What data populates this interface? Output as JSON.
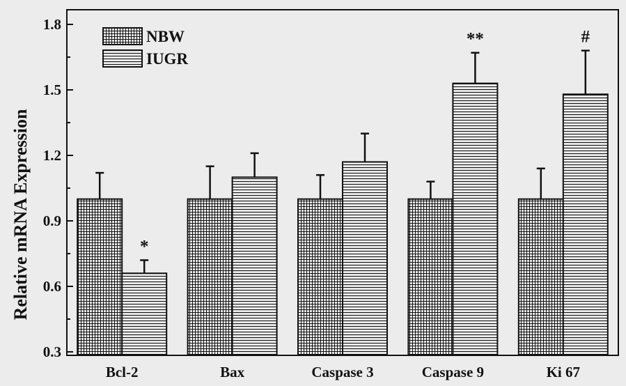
{
  "chart_data": {
    "type": "bar",
    "ylabel": "Relative mRNA Expression",
    "xlabel": "",
    "ylim": [
      0.3,
      1.8
    ],
    "yticks": [
      0.3,
      0.6,
      0.9,
      1.2,
      1.5,
      1.8
    ],
    "ytick_labels": [
      "0.3",
      "0.6",
      "0.9",
      "1.2",
      "1.5",
      "1.8"
    ],
    "categories": [
      "Bcl-2",
      "Bax",
      "Caspase 3",
      "Caspase 9",
      "Ki 67"
    ],
    "series": [
      {
        "name": "NBW",
        "pattern": "grid",
        "values": [
          1.0,
          1.0,
          1.0,
          1.0,
          1.0
        ],
        "errors": [
          0.12,
          0.15,
          0.11,
          0.08,
          0.14
        ]
      },
      {
        "name": "IUGR",
        "pattern": "horizontal-lines",
        "values": [
          0.66,
          1.1,
          1.17,
          1.53,
          1.48
        ],
        "errors": [
          0.06,
          0.11,
          0.13,
          0.14,
          0.2
        ]
      }
    ],
    "annotations": [
      "*",
      "",
      "",
      "**",
      "#"
    ],
    "legend_position": "top-left",
    "grid": false,
    "colors": {
      "fill": "#ececec",
      "stroke": "#111111"
    }
  }
}
